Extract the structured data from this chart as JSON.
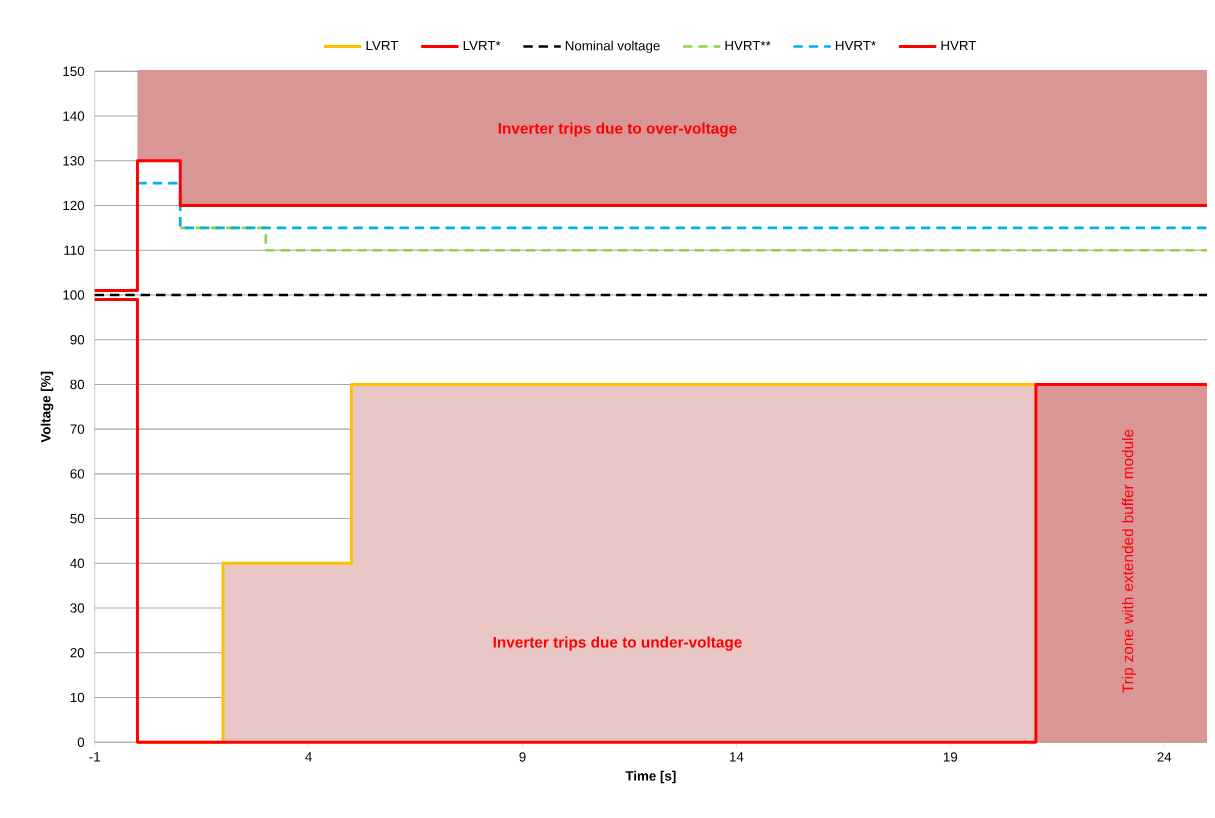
{
  "chart_data": {
    "type": "line",
    "xlabel": "Time [s]",
    "ylabel": "Voltage [%]",
    "xlim": [
      -1,
      25
    ],
    "xticks": [
      -1,
      4,
      9,
      14,
      19,
      24
    ],
    "ylim": [
      0,
      150
    ],
    "yticks": [
      0,
      10,
      20,
      30,
      40,
      50,
      60,
      70,
      80,
      90,
      100,
      110,
      120,
      130,
      140,
      150
    ],
    "grid": "y",
    "legend": "top",
    "marker": "none",
    "series": [
      {
        "name": "LVRT",
        "color": "#ffc000",
        "x": [
          0,
          2,
          2,
          5,
          5,
          21
        ],
        "values": [
          0,
          0,
          40,
          40,
          80,
          80
        ]
      },
      {
        "name": "LVRT*",
        "color": "#ff0000",
        "x": [
          -1,
          0,
          0,
          21,
          21,
          25
        ],
        "values": [
          99,
          99,
          0,
          0,
          80,
          80
        ]
      },
      {
        "name": "Nominal voltage",
        "color": "#000000",
        "line_style": "dashed",
        "x": [
          -1,
          25
        ],
        "values": [
          100,
          100
        ]
      },
      {
        "name": "HVRT**",
        "color": "#92d050",
        "line_style": "dashed",
        "x": [
          1,
          3,
          3,
          25
        ],
        "values": [
          115,
          115,
          110,
          110
        ]
      },
      {
        "name": "HVRT*",
        "color": "#00b0f0",
        "line_style": "dashed",
        "x": [
          0,
          1,
          1,
          25
        ],
        "values": [
          125,
          125,
          115,
          115
        ]
      },
      {
        "name": "HVRT",
        "color": "#ff0000",
        "x": [
          -1,
          0,
          0,
          1,
          1,
          25
        ],
        "values": [
          101,
          101,
          130,
          130,
          120,
          120
        ]
      },
      {
        "type": "line",
        "color": "#d99694",
        "x": [
          0,
          1,
          1,
          25
        ],
        "values": [
          150,
          150,
          150,
          150
        ],
        "lower": [
          130,
          130,
          120,
          120
        ],
        "upper": [
          150,
          150,
          150,
          150
        ]
      },
      {
        "type": "area",
        "color": "#e9c7c7",
        "x": [
          2,
          2,
          5,
          5,
          21,
          21
        ],
        "values": [
          0,
          40,
          40,
          80,
          80,
          0
        ]
      },
      {
        "type": "area",
        "color": "#d99694",
        "x": [
          21,
          25
        ],
        "values": [
          80,
          80
        ]
      }
    ],
    "annotations": [
      "Inverter trips due to over-voltage",
      "Inverter trips due to under-voltage",
      "Trip zone with extended buffer module"
    ]
  }
}
